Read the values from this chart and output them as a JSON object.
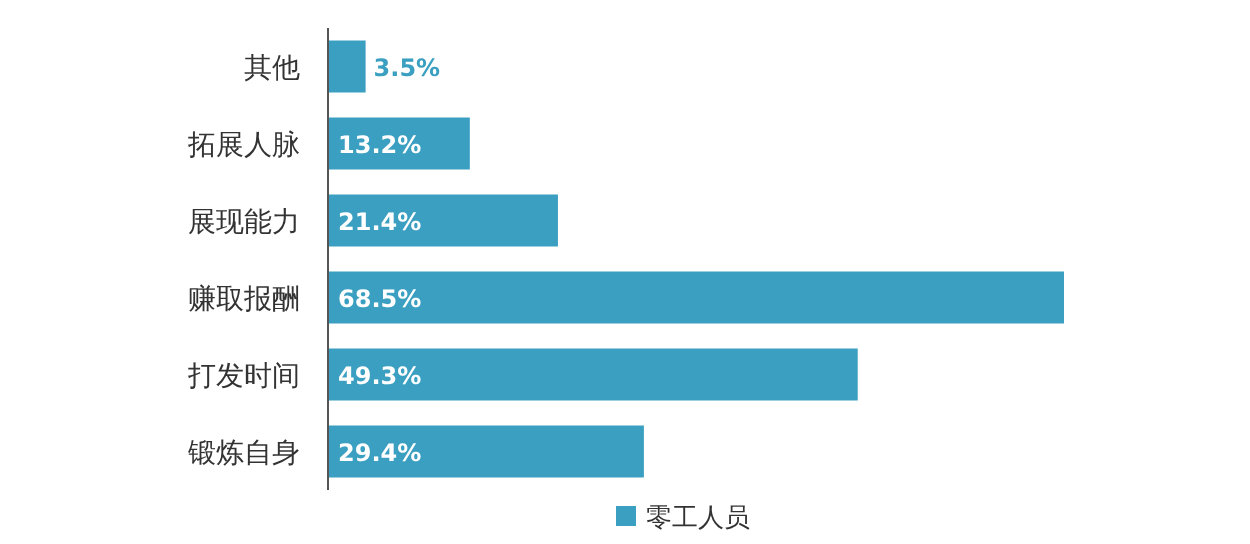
{
  "chart_data": {
    "type": "bar",
    "orientation": "horizontal",
    "categories": [
      "其他",
      "拓展人脉",
      "展现能力",
      "赚取报酬",
      "打发时间",
      "锻炼自身"
    ],
    "series": [
      {
        "name": "零工人员",
        "color": "#3a9fc0",
        "values": [
          3.5,
          13.2,
          21.4,
          68.5,
          49.3,
          29.4
        ],
        "value_labels": [
          "3.5%",
          "13.2%",
          "21.4%",
          "68.5%",
          "49.3%",
          "29.4%"
        ]
      }
    ],
    "legend": "bottom"
  }
}
